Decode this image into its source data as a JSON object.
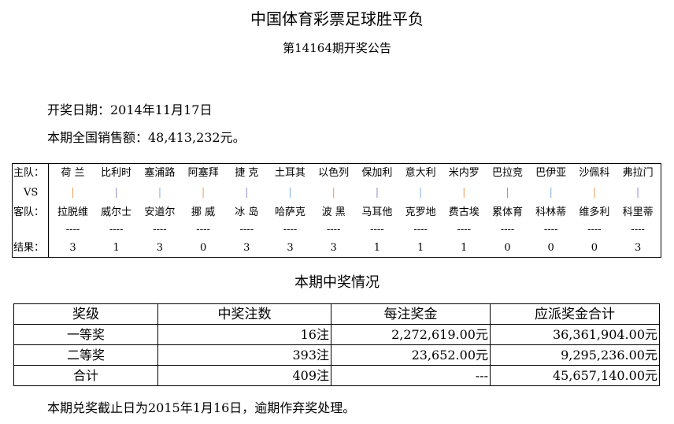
{
  "title": "中国体育彩票足球胜平负",
  "subtitle": "第14164期开奖公告",
  "date_line": "开奖日期：2014年11月17日",
  "sales_line": "本期全国销售额：48,413,232元。",
  "match_labels": {
    "home": "主队：",
    "vs": "VS",
    "away": "客队：",
    "result": "结果："
  },
  "matches": [
    {
      "home": "荷 兰",
      "away": "拉脱维",
      "result": "3"
    },
    {
      "home": "比利时",
      "away": "威尔士",
      "result": "1"
    },
    {
      "home": "塞浦路",
      "away": "安道尔",
      "result": "3"
    },
    {
      "home": "阿塞拜",
      "away": "挪 威",
      "result": "0"
    },
    {
      "home": "捷 克",
      "away": "冰 岛",
      "result": "3"
    },
    {
      "home": "土耳其",
      "away": "哈萨克",
      "result": "3"
    },
    {
      "home": "以色列",
      "away": "波 黑",
      "result": "3"
    },
    {
      "home": "保加利",
      "away": "马耳他",
      "result": "1"
    },
    {
      "home": "意大利",
      "away": "克罗地",
      "result": "1"
    },
    {
      "home": "米内罗",
      "away": "费古埃",
      "result": "1"
    },
    {
      "home": "巴拉竞",
      "away": "累体育",
      "result": "0"
    },
    {
      "home": "巴伊亚",
      "away": "科林蒂",
      "result": "0"
    },
    {
      "home": "沙佩科",
      "away": "维多利",
      "result": "0"
    },
    {
      "home": "弗拉门",
      "away": "科里蒂",
      "result": "3"
    }
  ],
  "sep": "|",
  "dash": "----",
  "section_title": "本期中奖情况",
  "prize_table": {
    "headers": [
      "奖级",
      "中奖注数",
      "每注奖金",
      "应派奖金合计"
    ],
    "rows": [
      [
        "一等奖",
        "16注",
        "2,272,619.00元",
        "36,361,904.00元"
      ],
      [
        "二等奖",
        "393注",
        "23,652.00元",
        "9,295,236.00元"
      ],
      [
        "合计",
        "409注",
        "---",
        "45,657,140.00元"
      ]
    ]
  },
  "footer": "本期兑奖截止日为2015年1月16日，逾期作弃奖处理。"
}
